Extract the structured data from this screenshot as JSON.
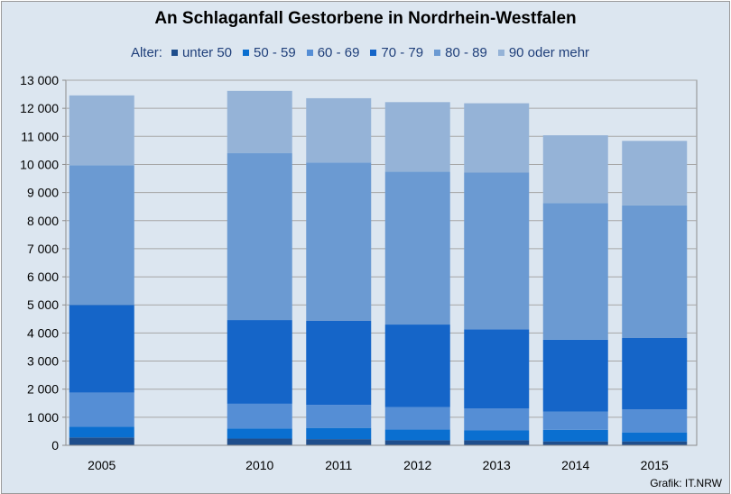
{
  "chart_data": {
    "type": "bar",
    "stacked": true,
    "title": "An Schlaganfall Gestorbene in Nordrhein-Westfalen",
    "legend_title": "Alter:",
    "categories": [
      "2005",
      "2010",
      "2011",
      "2012",
      "2013",
      "2014",
      "2015"
    ],
    "series": [
      {
        "name": "unter 50",
        "color": "#1f4e8c",
        "values": [
          280,
          240,
          220,
          180,
          180,
          140,
          140
        ]
      },
      {
        "name": "50 - 59",
        "color": "#0a6fd0",
        "values": [
          380,
          360,
          400,
          380,
          350,
          410,
          320
        ]
      },
      {
        "name": "60 - 69",
        "color": "#558ed5",
        "values": [
          1220,
          880,
          820,
          800,
          780,
          650,
          820
        ]
      },
      {
        "name": "70 - 79",
        "color": "#1565c8",
        "values": [
          3120,
          2980,
          2990,
          2940,
          2820,
          2560,
          2540
        ]
      },
      {
        "name": "80 - 89",
        "color": "#6b9ad2",
        "values": [
          4970,
          5950,
          5640,
          5440,
          5580,
          4860,
          4720
        ]
      },
      {
        "name": "90 oder mehr",
        "color": "#95b3d7",
        "values": [
          2490,
          2210,
          2290,
          2480,
          2470,
          2420,
          2300
        ]
      }
    ],
    "ylim": [
      0,
      13000
    ],
    "yticks": [
      "0",
      "1 000",
      "2 000",
      "3 000",
      "4 000",
      "5 000",
      "6 000",
      "7 000",
      "8 000",
      "9 000",
      "10 000",
      "11 000",
      "12 000",
      "13 000"
    ],
    "grid": true,
    "legend_position": "top"
  },
  "credit": "Grafik: IT.NRW"
}
